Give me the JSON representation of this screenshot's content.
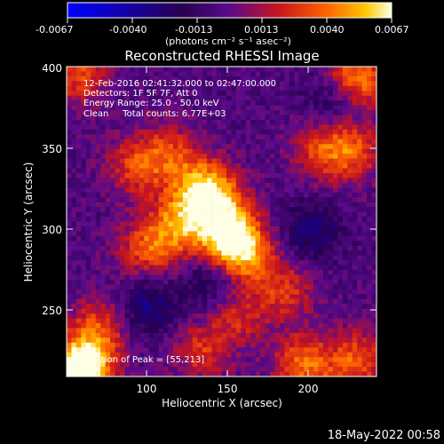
{
  "colorbar": {
    "tick_labels": [
      "-0.0067",
      "-0.0040",
      "-0.0013",
      "0.0013",
      "0.0040",
      "0.0067"
    ],
    "unit_label": "(photons cm⁻² s⁻¹ asec⁻²)",
    "range": [
      -0.0067,
      0.0067
    ]
  },
  "chart_data": {
    "type": "heatmap",
    "title": "Reconstructed RHESSI Image",
    "xlabel": "Heliocentric X (arcsec)",
    "ylabel": "Heliocentric Y (arcsec)",
    "xlim": [
      50,
      240
    ],
    "ylim": [
      213,
      400
    ],
    "x_ticks": [
      "100",
      "150",
      "200"
    ],
    "y_ticks": [
      "250",
      "300",
      "350",
      "400"
    ],
    "annotations": [
      "12-Feb-2016 02:41:32.000 to 02:47:00.000",
      "Detectors: 1F 5F 7F, Att 0",
      "Energy Range: 25.0 - 50.0 keV",
      "Clean     Total counts: 6.77E+03"
    ],
    "peak_label": "Position of Peak = [55,213]",
    "peak": [
      55,
      213
    ],
    "z_range": [
      -0.0067,
      0.0067
    ],
    "sources": [
      {
        "x": 150,
        "y": 298,
        "amp": 0.0067
      },
      {
        "x": 140,
        "y": 320,
        "amp": 0.0052
      },
      {
        "x": 120,
        "y": 305,
        "amp": 0.0045
      },
      {
        "x": 100,
        "y": 290,
        "amp": 0.0038
      },
      {
        "x": 160,
        "y": 285,
        "amp": 0.004
      },
      {
        "x": 130,
        "y": 330,
        "amp": 0.003
      },
      {
        "x": 92,
        "y": 340,
        "amp": 0.0032
      },
      {
        "x": 112,
        "y": 348,
        "amp": 0.003
      },
      {
        "x": 70,
        "y": 243,
        "amp": 0.0033
      },
      {
        "x": 62,
        "y": 220,
        "amp": 0.0045
      },
      {
        "x": 55,
        "y": 213,
        "amp": 0.006
      },
      {
        "x": 58,
        "y": 395,
        "amp": 0.0036
      },
      {
        "x": 228,
        "y": 393,
        "amp": 0.0055
      },
      {
        "x": 205,
        "y": 350,
        "amp": 0.003
      },
      {
        "x": 225,
        "y": 350,
        "amp": 0.0038
      },
      {
        "x": 185,
        "y": 265,
        "amp": 0.003
      },
      {
        "x": 155,
        "y": 250,
        "amp": 0.0028
      },
      {
        "x": 132,
        "y": 228,
        "amp": 0.003
      },
      {
        "x": 195,
        "y": 220,
        "amp": 0.0045
      },
      {
        "x": 228,
        "y": 222,
        "amp": 0.004
      }
    ],
    "negative_sources": [
      {
        "x": 100,
        "y": 255,
        "amp": -0.003
      },
      {
        "x": 140,
        "y": 270,
        "amp": -0.0025
      },
      {
        "x": 200,
        "y": 300,
        "amp": -0.0028
      },
      {
        "x": 215,
        "y": 380,
        "amp": -0.0025
      }
    ]
  },
  "timestamp": "18-May-2022 00:58"
}
